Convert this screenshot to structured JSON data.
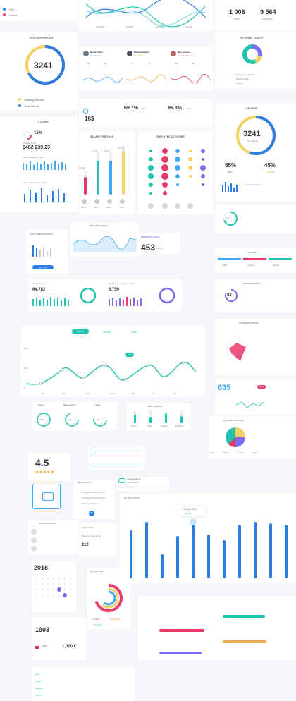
{
  "top": {
    "legend": [
      {
        "label": "USA",
        "color": "#2e7de0"
      },
      {
        "label": "Ukraine",
        "color": "#e8396a"
      }
    ],
    "wave_ticks": [
      "6 ROOM",
      "6:30 AM",
      "7 ROOM",
      "7 DAYS"
    ],
    "today_value": "1 006",
    "today_label": "TODAY",
    "week_value": "9 564",
    "week_label": "THIS WEEK"
  },
  "site_view": {
    "title": "SITE VIEW PER DAY",
    "value": "3241",
    "legend": [
      {
        "label": "Existing Clients",
        "color": "#f5d061"
      },
      {
        "label": "New Clients",
        "color": "#2e7de0"
      }
    ]
  },
  "people": [
    {
      "name": "Bertie Potter",
      "role": "UI Designer",
      "stats": [
        {
          "v": "60",
          "l": "Likes"
        },
        {
          "v": "92",
          "l": "Views"
        }
      ],
      "color": "#3fa9f5"
    },
    {
      "name": "Blake Hamilton",
      "role": "Art Director",
      "stats": [
        {
          "v": "67",
          "l": "Likes"
        },
        {
          "v": "12",
          "l": "Views"
        }
      ],
      "color": "#f0a94b"
    },
    {
      "name": "Mae Jensen",
      "role": "Project Manager",
      "stats": [
        {
          "v": "44",
          "l": "Likes"
        },
        {
          "v": "72",
          "l": "Views"
        }
      ],
      "color": "#e8396a"
    }
  ],
  "filter": {
    "title": "FILTER BY QUALITY",
    "items": [
      {
        "label": "Existing Customers",
        "v": "12"
      },
      {
        "label": "Bounce Rates",
        "v": "8"
      },
      {
        "label": "Visitors",
        "v": "4"
      }
    ]
  },
  "stating": {
    "title": "STATING",
    "percent": "15%",
    "total_label": "Total Revenue",
    "total": "$482 239.23",
    "label1": "Active Visitors per day",
    "label2": "Active sessions per week"
  },
  "mid_metrics": {
    "price": "16$",
    "pct1": "69.7%",
    "pct1_delta": "+ 8.7",
    "pct2": "96.3%",
    "pct2_delta": "+ 2.4"
  },
  "salary": {
    "title": "SALARY PER YEAR",
    "people": [
      "Jane",
      "Jack",
      "Adam",
      "Chris"
    ],
    "values": [
      "$ 2,1k",
      "$ 3,7k",
      "$ 3,7k",
      "$ 4,1k"
    ]
  },
  "activities": {
    "title": "EMPLOYEE ACTIVITIES"
  },
  "gender": {
    "title": "GENDER",
    "value": "3241",
    "sub": "new clients",
    "men": "55%",
    "women": "45%",
    "men_label": "MEN",
    "women_label": "WOMEN",
    "users_label": "Users Analytics"
  },
  "small_stat": {
    "value": "2 3 7"
  },
  "sticky_traffic": {
    "title": "JUST STRING TRAFFIC",
    "button": "Monthly"
  },
  "request_visits": {
    "title": "REQUEST VISITS"
  },
  "products": {
    "title": "PRODUCTS SOLD",
    "value": "453",
    "delta": "+2.8%"
  },
  "traffic": {
    "title": "TRAFFIC",
    "cols": [
      "SMM",
      "Organic",
      "Ethical"
    ]
  },
  "rating_row": {
    "label1": "General rating",
    "v1": "64.782",
    "label2": "Strategy by category / Trust",
    "v2": "6.759"
  },
  "planes": {
    "title": "PLANES STATUS",
    "value": "82"
  },
  "tabs": [
    "Week",
    "Month",
    "Year"
  ],
  "big_line": {
    "yticks": [
      "200",
      "100",
      "0"
    ],
    "days": [
      "Sun",
      "Mon",
      "Tue",
      "Wed",
      "Thu",
      "Fri",
      "Sat"
    ],
    "badge": "325"
  },
  "stardom": {
    "title": "STARDOM TRAFFIC"
  },
  "visitors": [
    {
      "label": "Views",
      "v": "1905"
    },
    {
      "label": "New visitors",
      "v": "645"
    },
    {
      "label": "Leads",
      "v": "315"
    }
  ],
  "sources": {
    "title": "Traffic Sources",
    "items": [
      "Direct",
      "SMM",
      "Organic",
      "Referrals"
    ]
  },
  "mini_635": {
    "value": "635",
    "badge": "New"
  },
  "sales_country": {
    "title": "SALES BY COUNTRY",
    "legend": [
      "USA",
      "Ukraine",
      "China",
      "India"
    ]
  },
  "rating": {
    "value": "4.5"
  },
  "download": {
    "label": "Downloading...",
    "sub": "Loaded 35%"
  },
  "todo": {
    "title": "Mindful To Do",
    "items": [
      "Download Dashboard Kit",
      "Download Dashboard Kit",
      "Download Bot UI"
    ]
  },
  "report": {
    "title": "My Own Report",
    "tooltip": "Average score",
    "tooltip_sub": "12,800"
  },
  "notifications": {
    "title": "NOTIFICATIONS"
  },
  "calendar": {
    "year": "2018"
  },
  "level": {
    "title": "Level of oil",
    "battery": "Battery is almost full",
    "v": "112"
  },
  "donut2": {
    "title": "Historic time",
    "legend": [
      "STEPS",
      "CALORIES",
      "CYCLING"
    ]
  },
  "bottom": {
    "year": "1903",
    "gbp": "GBP",
    "amount": "1,000 £"
  },
  "table": {
    "rows": [
      "June",
      "Prismo",
      "Balance",
      "Vinoth"
    ]
  }
}
